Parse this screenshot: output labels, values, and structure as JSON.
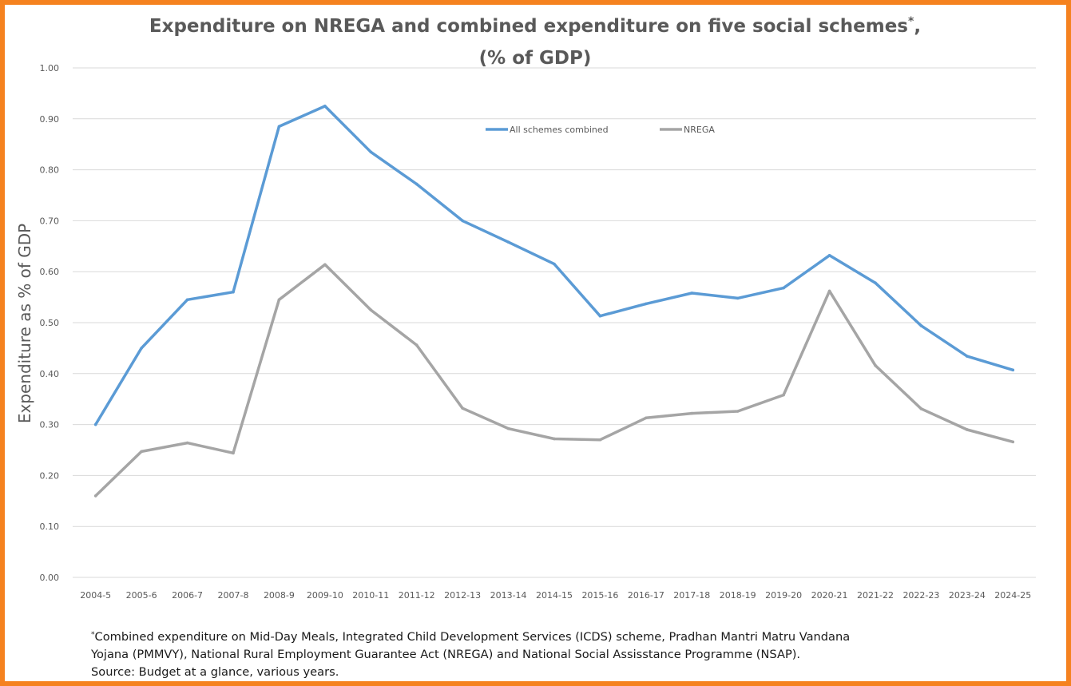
{
  "colors": {
    "frame": "#f5821f",
    "all_schemes": "#5b9bd5",
    "nrega": "#a5a5a5"
  },
  "chart_data": {
    "type": "line",
    "title": "Expenditure on NREGA and combined expenditure on five social schemes",
    "title_marker": "*",
    "title_comma": ",",
    "subtitle": "(% of GDP)",
    "ylabel": "Expenditure as % of GDP",
    "xlabel": "",
    "ylim": [
      0,
      1
    ],
    "yticks": [
      "0.00",
      "0.10",
      "0.20",
      "0.30",
      "0.40",
      "0.50",
      "0.60",
      "0.70",
      "0.80",
      "0.90",
      "1.00"
    ],
    "grid": true,
    "legend_position": "top-center",
    "categories": [
      "2004-5",
      "2005-6",
      "2006-7",
      "2007-8",
      "2008-9",
      "2009-10",
      "2010-11",
      "2011-12",
      "2012-13",
      "2013-14",
      "2014-15",
      "2015-16",
      "2016-17",
      "2017-18",
      "2018-19",
      "2019-20",
      "2020-21",
      "2021-22",
      "2022-23",
      "2023-24",
      "2024-25"
    ],
    "series": [
      {
        "name": "All schemes combined",
        "color": "#5b9bd5",
        "values": [
          0.3,
          0.45,
          0.545,
          0.56,
          0.885,
          0.925,
          0.835,
          0.772,
          0.7,
          0.658,
          0.615,
          0.513,
          0.537,
          0.558,
          0.548,
          0.568,
          0.632,
          0.578,
          0.494,
          0.434,
          0.407
        ]
      },
      {
        "name": "NREGA",
        "color": "#a5a5a5",
        "values": [
          0.16,
          0.247,
          0.264,
          0.244,
          0.545,
          0.614,
          0.525,
          0.456,
          0.332,
          0.292,
          0.272,
          0.27,
          0.313,
          0.322,
          0.326,
          0.358,
          0.562,
          0.416,
          0.331,
          0.29,
          0.266
        ]
      }
    ]
  },
  "footnote": {
    "marker": "*",
    "line1": "Combined expenditure on Mid-Day Meals, Integrated Child Development Services (ICDS) scheme, Pradhan Mantri Matru Vandana",
    "line2": "Yojana (PMMVY), National Rural Employment Guarantee Act (NREGA) and National Social Assisstance Programme (NSAP).",
    "line3": "Source: Budget at a glance, various years."
  }
}
